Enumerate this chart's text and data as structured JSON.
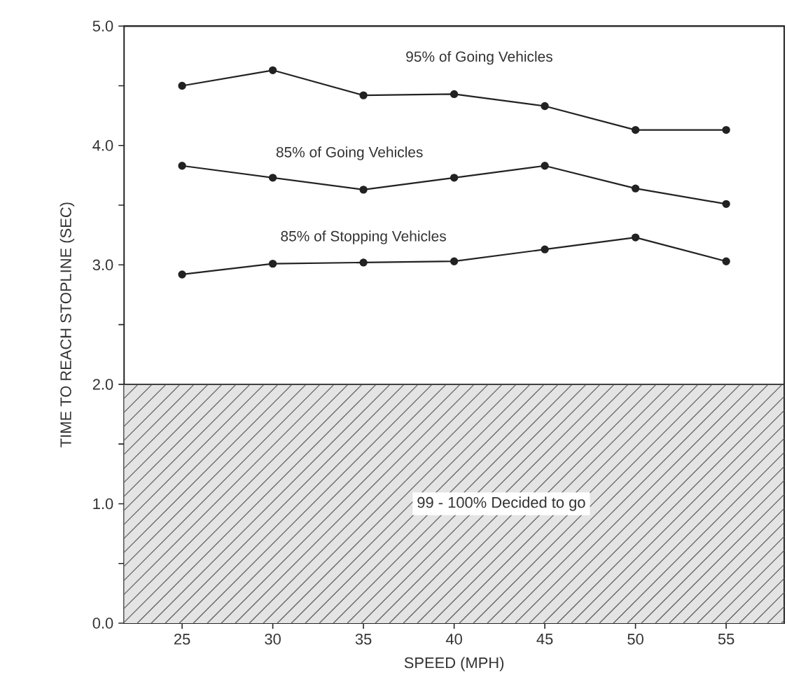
{
  "chart_data": {
    "type": "line",
    "xlabel": "SPEED (MPH)",
    "ylabel": "TIME TO REACH STOPLINE (SEC)",
    "x": [
      25,
      30,
      35,
      40,
      45,
      50,
      55
    ],
    "series": [
      {
        "name": "95% of Going Vehicles",
        "color": "#222222",
        "values": [
          4.5,
          4.63,
          4.42,
          4.43,
          4.33,
          4.13,
          4.13
        ]
      },
      {
        "name": "85% of Going Vehicles",
        "color": "#222222",
        "values": [
          3.83,
          3.73,
          3.63,
          3.73,
          3.83,
          3.64,
          3.51
        ]
      },
      {
        "name": "85% of Stopping Vehicles",
        "color": "#222222",
        "values": [
          2.92,
          3.01,
          3.02,
          3.03,
          3.13,
          3.23,
          3.03
        ]
      }
    ],
    "xlim": [
      21.8,
      58.2
    ],
    "ylim": [
      0,
      5
    ],
    "xticks": [
      25,
      30,
      35,
      40,
      45,
      50,
      55
    ],
    "yticks": [
      {
        "value": 0,
        "label": "0.0"
      },
      {
        "value": 0.5,
        "label": null
      },
      {
        "value": 1,
        "label": "1.0"
      },
      {
        "value": 1.5,
        "label": null
      },
      {
        "value": 2,
        "label": "2.0"
      },
      {
        "value": 2.5,
        "label": null
      },
      {
        "value": 3,
        "label": "3.0"
      },
      {
        "value": 3.5,
        "label": null
      },
      {
        "value": 4,
        "label": "4.0"
      },
      {
        "value": 4.5,
        "label": null
      },
      {
        "value": 5,
        "label": "5.0"
      }
    ],
    "bands": [
      {
        "axis": "y",
        "from": 0,
        "to": 2,
        "label": "99 - 100% Decided to go",
        "color": "#e4e4e4"
      }
    ],
    "marker": "circle",
    "line_style": "solid"
  }
}
